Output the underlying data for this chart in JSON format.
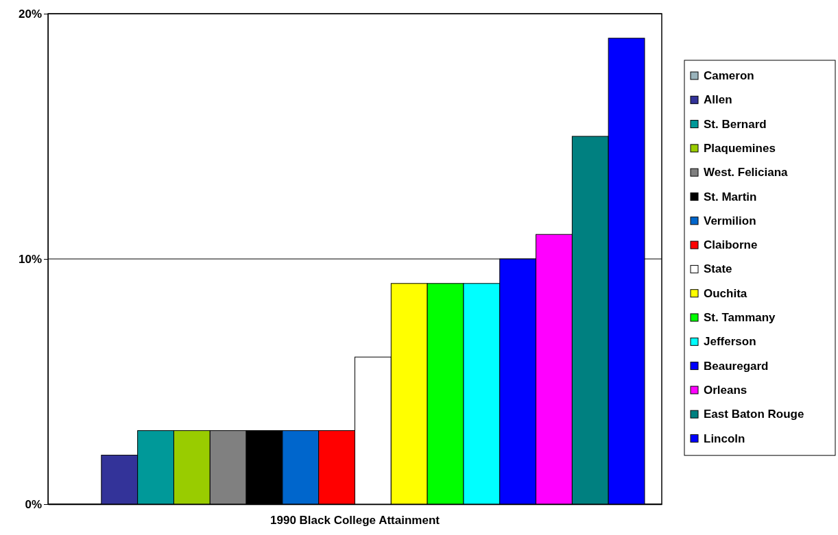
{
  "chart_data": {
    "type": "bar",
    "categories": [
      "1990 Black College Attainment"
    ],
    "ylim": [
      0,
      20
    ],
    "yticks": [
      {
        "value": 0,
        "label": "0%"
      },
      {
        "value": 10,
        "label": "10%"
      },
      {
        "value": 20,
        "label": "20%"
      }
    ],
    "grid": "y",
    "legend": "right",
    "series": [
      {
        "name": "Cameron",
        "color": "#99b3bb",
        "values": [
          0
        ]
      },
      {
        "name": "Allen",
        "color": "#333399",
        "values": [
          2
        ]
      },
      {
        "name": "St. Bernard",
        "color": "#009999",
        "values": [
          3
        ]
      },
      {
        "name": "Plaquemines",
        "color": "#99cc00",
        "values": [
          3
        ]
      },
      {
        "name": "West. Feliciana",
        "color": "#808080",
        "values": [
          3
        ]
      },
      {
        "name": "St. Martin",
        "color": "#000000",
        "values": [
          3
        ]
      },
      {
        "name": "Vermilion",
        "color": "#0066cc",
        "values": [
          3
        ]
      },
      {
        "name": "Claiborne",
        "color": "#ff0000",
        "values": [
          3
        ]
      },
      {
        "name": "State",
        "color": "#ffffff",
        "values": [
          6
        ]
      },
      {
        "name": "Ouchita",
        "color": "#ffff00",
        "values": [
          9
        ]
      },
      {
        "name": "St. Tammany",
        "color": "#00ff00",
        "values": [
          9
        ]
      },
      {
        "name": "Jefferson",
        "color": "#00ffff",
        "values": [
          9
        ]
      },
      {
        "name": "Beauregard",
        "color": "#0000ff",
        "values": [
          10
        ]
      },
      {
        "name": "Orleans",
        "color": "#ff00ff",
        "values": [
          11
        ]
      },
      {
        "name": "East Baton Rouge",
        "color": "#008080",
        "values": [
          15
        ]
      },
      {
        "name": "Lincoln",
        "color": "#0000ff",
        "values": [
          19
        ]
      }
    ]
  }
}
